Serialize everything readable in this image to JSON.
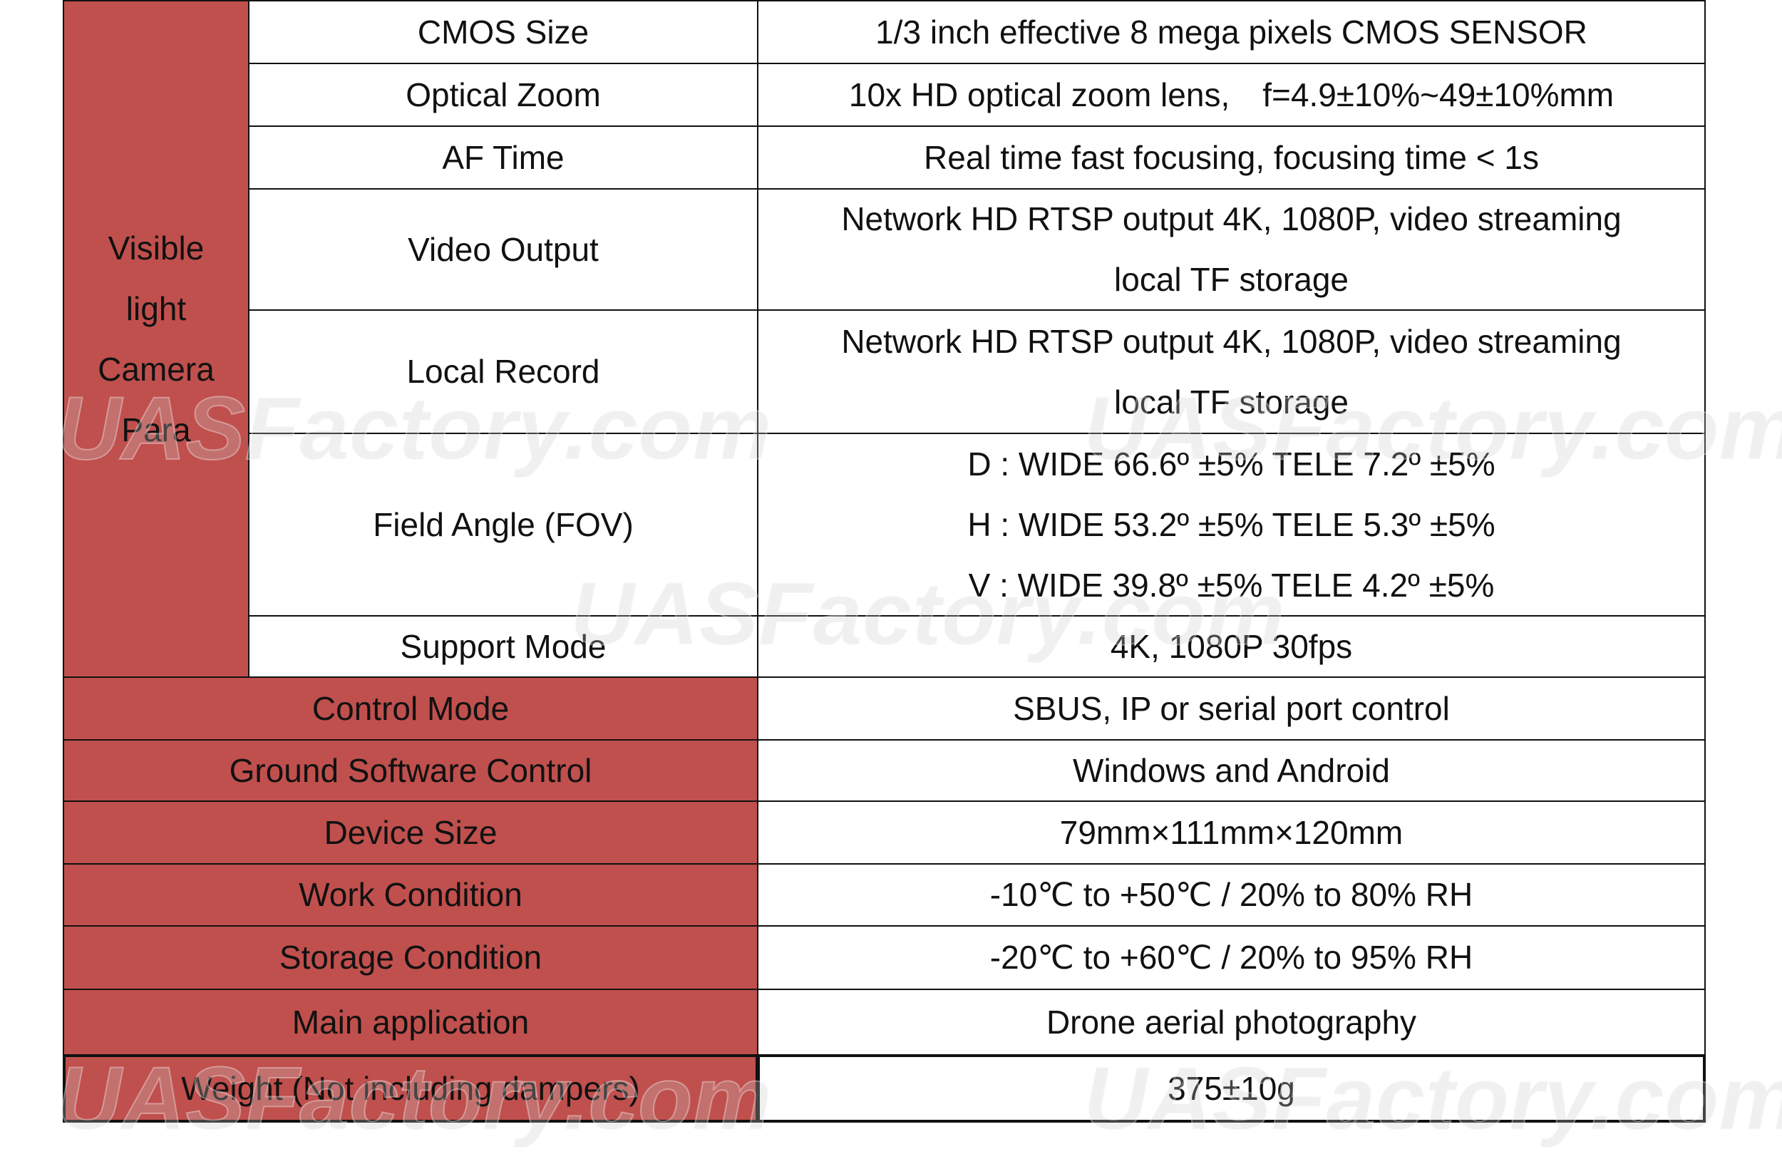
{
  "group_label": [
    "Visible",
    "light",
    "Camera",
    "Para"
  ],
  "camera_rows": [
    {
      "name": "CMOS Size",
      "value": [
        "1/3 inch effective 8 mega pixels CMOS SENSOR"
      ]
    },
    {
      "name": "Optical Zoom",
      "value": [
        "10x HD optical zoom lens,　f=4.9±10%~49±10%mm"
      ]
    },
    {
      "name": "AF Time",
      "value": [
        "Real time fast focusing, focusing time < 1s"
      ]
    },
    {
      "name": "Video Output",
      "value": [
        "Network HD RTSP output 4K, 1080P, video streaming",
        "local TF storage"
      ]
    },
    {
      "name": "Local Record",
      "value": [
        "Network HD RTSP output 4K, 1080P, video streaming",
        "local TF storage"
      ]
    },
    {
      "name": "Field Angle (FOV)",
      "value": [
        "D : WIDE 66.6º ±5% TELE 7.2º ±5%",
        "H : WIDE 53.2º ±5% TELE 5.3º ±5%",
        "V : WIDE 39.8º ±5% TELE 4.2º ±5%"
      ]
    },
    {
      "name": "Support Mode",
      "value": [
        "4K, 1080P 30fps"
      ]
    }
  ],
  "rows": [
    {
      "name": "Control Mode",
      "value": [
        "SBUS, IP or serial port control"
      ]
    },
    {
      "name": "Ground Software Control",
      "value": [
        "Windows and Android"
      ]
    },
    {
      "name": "Device Size",
      "value": [
        "79mm×111mm×120mm"
      ]
    },
    {
      "name": "Work Condition",
      "value": [
        "-10℃ to +50℃ / 20% to 80% RH"
      ]
    },
    {
      "name": "Storage Condition",
      "value": [
        "-20℃ to +60℃ / 20% to 95% RH"
      ]
    },
    {
      "name": "Main application",
      "value": [
        "Drone aerial photography"
      ]
    },
    {
      "name": "Weight (Not including dampers)",
      "value": [
        "375±10g"
      ]
    }
  ],
  "watermark": "UASFactory.com"
}
